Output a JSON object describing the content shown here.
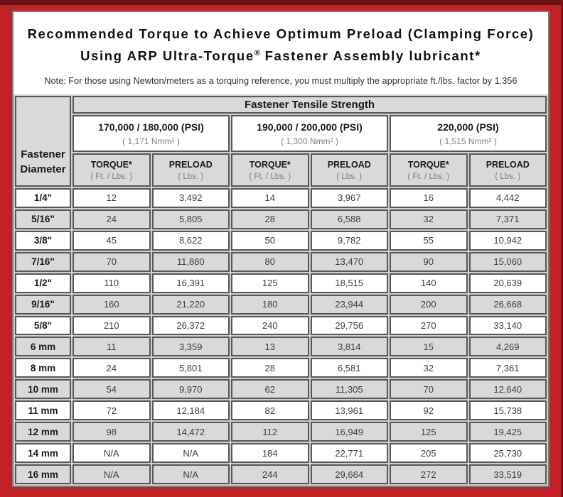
{
  "header": {
    "title_line1": "Recommended Torque to Achieve Optimum Preload (Clamping Force)",
    "title_line2_prefix": "Using ARP Ultra-Torque",
    "title_line2_sup": "®",
    "title_line2_suffix": " Fastener Assembly lubricant*",
    "note": "Note: For those using Newton/meters as a torquing reference, you must multiply the appropriate ft./lbs. factor by 1.356"
  },
  "colors": {
    "frame_red": "#c22127",
    "frame_dark_red": "#6e1114",
    "header_gray": "#d9d9d9",
    "cell_border": "#58585a"
  },
  "table": {
    "corner": {
      "line1": "Fastener",
      "line2": "Diameter"
    },
    "tensile_header": "Fastener Tensile Strength",
    "groups": [
      {
        "psi": "170,000 / 180,000 (PSI)",
        "nmm": "( 1,171 Nmm² )"
      },
      {
        "psi": "190,000 / 200,000 (PSI)",
        "nmm": "( 1,300 Nmm² )"
      },
      {
        "psi": "220,000 (PSI)",
        "nmm": "( 1,515 Nmm² )"
      }
    ],
    "subcolumns": {
      "torque": {
        "label": "TORQUE*",
        "unit": "( Ft. / Lbs. )"
      },
      "preload": {
        "label": "PRELOAD",
        "unit": "( Lbs. )"
      }
    },
    "rows": [
      {
        "d": "1/4\"",
        "v": [
          "12",
          "3,492",
          "14",
          "3,967",
          "16",
          "4,442"
        ]
      },
      {
        "d": "5/16\"",
        "v": [
          "24",
          "5,805",
          "28",
          "6,588",
          "32",
          "7,371"
        ]
      },
      {
        "d": "3/8\"",
        "v": [
          "45",
          "8,622",
          "50",
          "9,782",
          "55",
          "10,942"
        ]
      },
      {
        "d": "7/16\"",
        "v": [
          "70",
          "11,880",
          "80",
          "13,470",
          "90",
          "15,060"
        ]
      },
      {
        "d": "1/2\"",
        "v": [
          "110",
          "16,391",
          "125",
          "18,515",
          "140",
          "20,639"
        ]
      },
      {
        "d": "9/16\"",
        "v": [
          "160",
          "21,220",
          "180",
          "23,944",
          "200",
          "26,668"
        ]
      },
      {
        "d": "5/8\"",
        "v": [
          "210",
          "26,372",
          "240",
          "29,756",
          "270",
          "33,140"
        ]
      },
      {
        "d": "6 mm",
        "v": [
          "11",
          "3,359",
          "13",
          "3,814",
          "15",
          "4,269"
        ]
      },
      {
        "d": "8 mm",
        "v": [
          "24",
          "5,801",
          "28",
          "6,581",
          "32",
          "7,361"
        ]
      },
      {
        "d": "10 mm",
        "v": [
          "54",
          "9,970",
          "62",
          "11,305",
          "70",
          "12,640"
        ]
      },
      {
        "d": "11 mm",
        "v": [
          "72",
          "12,184",
          "82",
          "13,961",
          "92",
          "15,738"
        ]
      },
      {
        "d": "12 mm",
        "v": [
          "98",
          "14,472",
          "112",
          "16,949",
          "125",
          "19,425"
        ]
      },
      {
        "d": "14 mm",
        "v": [
          "N/A",
          "N/A",
          "184",
          "22,771",
          "205",
          "25,730"
        ]
      },
      {
        "d": "16 mm",
        "v": [
          "N/A",
          "N/A",
          "244",
          "29,664",
          "272",
          "33,519"
        ]
      }
    ]
  }
}
